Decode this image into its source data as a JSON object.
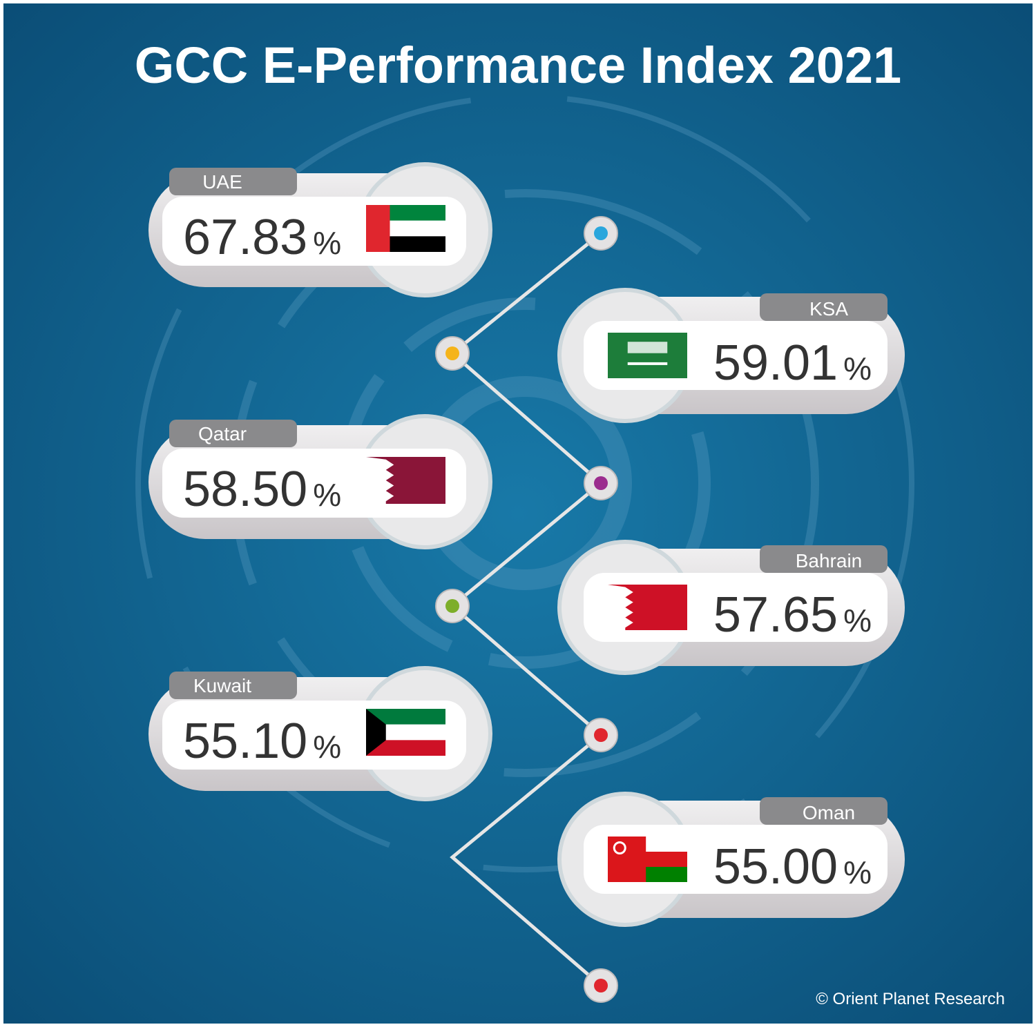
{
  "title": "GCC E-Performance Index 2021",
  "unit": "%",
  "items": [
    {
      "country": "UAE",
      "value": "67.83"
    },
    {
      "country": "KSA",
      "value": "59.01"
    },
    {
      "country": "Qatar",
      "value": "58.50"
    },
    {
      "country": "Bahrain",
      "value": "57.65"
    },
    {
      "country": "Kuwait",
      "value": "55.10"
    },
    {
      "country": "Oman",
      "value": "55.00"
    }
  ],
  "credit": "© Orient Planet Research"
}
